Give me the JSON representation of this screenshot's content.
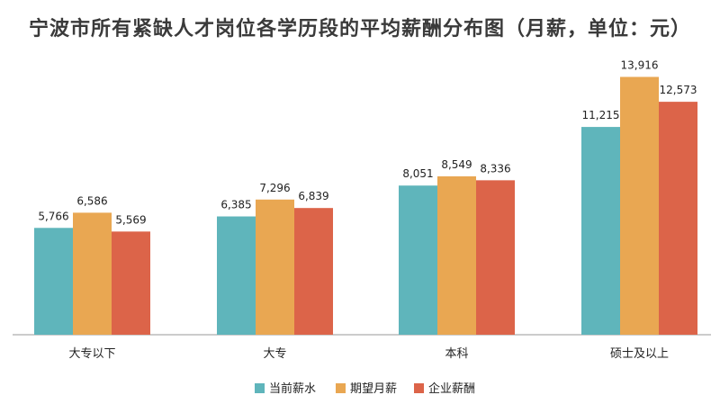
{
  "chart_data": {
    "type": "bar",
    "title": "宁波市所有紧缺人才岗位各学历段的平均薪酬分布图（月薪，单位：元）",
    "categories": [
      "大专以下",
      "大专",
      "本科",
      "硕士及以上"
    ],
    "series": [
      {
        "name": "当前薪水",
        "color": "#5fb5bb",
        "values": [
          5766,
          6385,
          8051,
          11215
        ],
        "labels": [
          "5,766",
          "6,385",
          "8,051",
          "11,215"
        ]
      },
      {
        "name": "期望月薪",
        "color": "#e9a752",
        "values": [
          6586,
          7296,
          8549,
          13916
        ],
        "labels": [
          "6,586",
          "7,296",
          "8,549",
          "13,916"
        ]
      },
      {
        "name": "企业薪酬",
        "color": "#dc6449",
        "values": [
          5569,
          6839,
          8336,
          12573
        ],
        "labels": [
          "5,569",
          "6,839",
          "8,336",
          "12,573"
        ]
      }
    ],
    "ylim": [
      0,
      14000
    ],
    "grid": false,
    "legend": "bottom"
  }
}
